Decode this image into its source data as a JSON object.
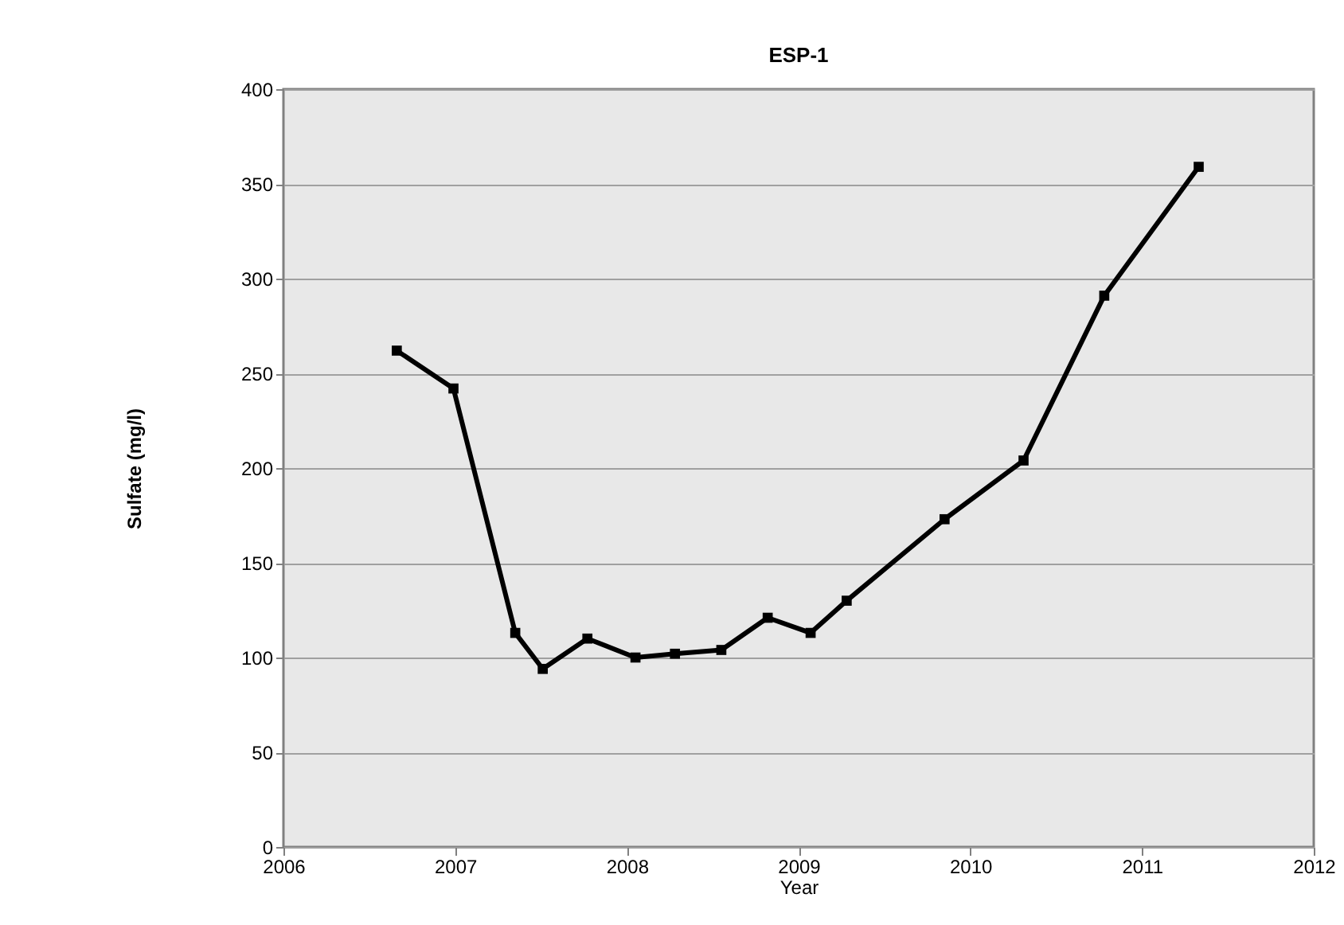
{
  "chart_data": {
    "type": "line",
    "title": "ESP-1",
    "xlabel": "Year",
    "ylabel": "Sulfate (mg/l)",
    "x": [
      2006.66,
      2006.99,
      2007.35,
      2007.51,
      2007.77,
      2008.05,
      2008.28,
      2008.55,
      2008.82,
      2009.07,
      2009.28,
      2009.85,
      2010.31,
      2010.78,
      2011.33
    ],
    "series": [
      {
        "color": "#000000",
        "values": [
          262,
          242,
          113,
          94,
          110,
          100,
          102,
          104,
          121,
          113,
          130,
          173,
          204,
          291,
          359
        ]
      }
    ],
    "xlim": [
      2006,
      2012
    ],
    "xticks": [
      2006,
      2007,
      2008,
      2009,
      2010,
      2011,
      2012
    ],
    "ylim": [
      0,
      400
    ],
    "yticks": [
      0,
      50,
      100,
      150,
      200,
      250,
      300,
      350,
      400
    ],
    "grid": "y",
    "marker": "square",
    "line_style": "solid"
  }
}
